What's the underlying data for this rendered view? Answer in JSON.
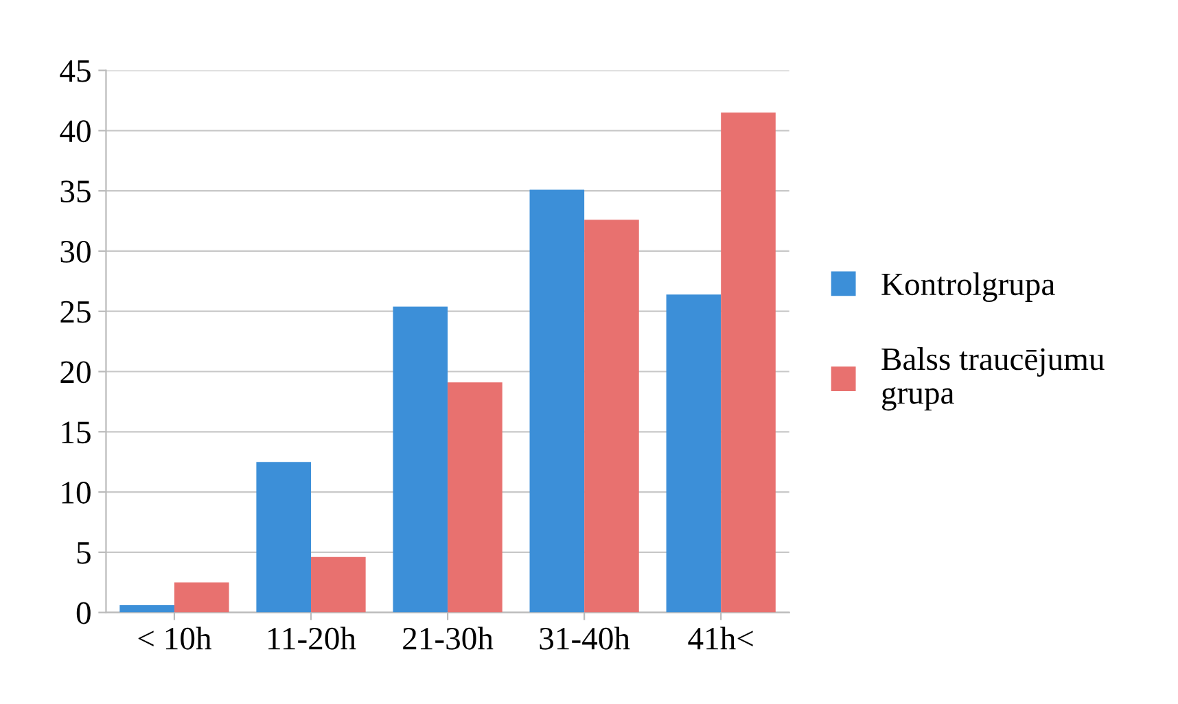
{
  "chart_data": {
    "type": "bar",
    "categories": [
      "< 10h",
      "11-20h",
      "21-30h",
      "31-40h",
      "41h<"
    ],
    "series": [
      {
        "name": "Kontrolgrupa",
        "color": "#3c8fd8",
        "values": [
          0.6,
          12.5,
          25.4,
          35.1,
          26.4
        ]
      },
      {
        "name": "Balss traucējumu grupa",
        "color": "#e8716f",
        "values": [
          2.5,
          4.6,
          19.1,
          32.6,
          41.5
        ]
      }
    ],
    "ylim": [
      0,
      45
    ],
    "yticks": [
      0,
      5,
      10,
      15,
      20,
      25,
      30,
      35,
      40,
      45
    ],
    "grid": "y",
    "legend": "right"
  }
}
